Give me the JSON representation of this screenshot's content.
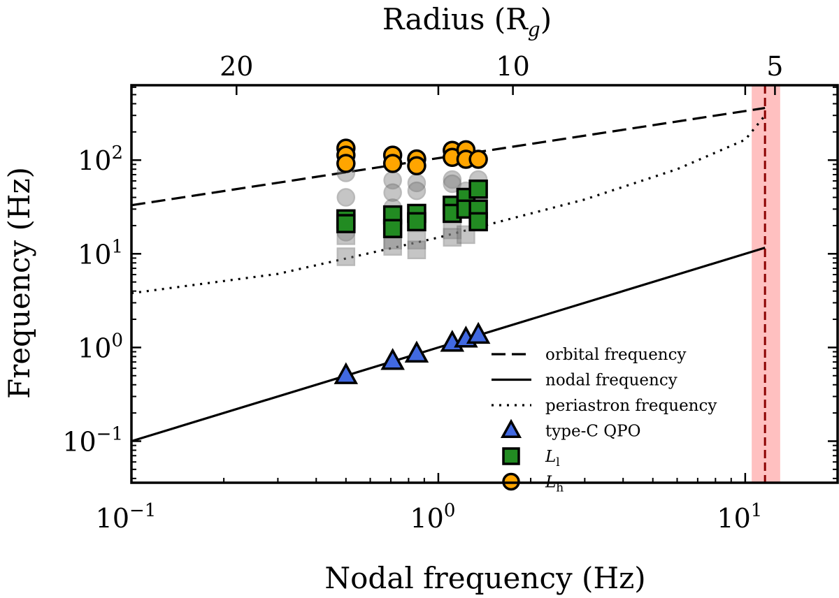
{
  "chart_data": {
    "type": "scatter",
    "xlabel": "Nodal frequency (Hz)",
    "ylabel": "Frequency (Hz)",
    "top_xlabel": "Radius (R",
    "top_xlabel_sub": "g",
    "top_xlabel_close": ")",
    "xscale": "log",
    "yscale": "log",
    "xlim": [
      0.1,
      20
    ],
    "ylim": [
      0.036,
      630
    ],
    "grid": false,
    "legend_position": "bottom-right",
    "x_ticks": [
      {
        "value": 0.1,
        "base": "10",
        "exp": "−1"
      },
      {
        "value": 1,
        "base": "10",
        "exp": "0"
      },
      {
        "value": 10,
        "base": "10",
        "exp": "1"
      }
    ],
    "y_ticks": [
      {
        "value": 0.1,
        "base": "10",
        "exp": "−1"
      },
      {
        "value": 1,
        "base": "10",
        "exp": "0"
      },
      {
        "value": 10,
        "base": "10",
        "exp": "1"
      },
      {
        "value": 100,
        "base": "10",
        "exp": "2"
      }
    ],
    "top_ticks": [
      {
        "label": "20",
        "nodal_value": 0.22
      },
      {
        "label": "10",
        "nodal_value": 1.75
      },
      {
        "label": "5",
        "nodal_value": 12.5
      }
    ],
    "isco_line": {
      "x": 11.6,
      "band": [
        10.5,
        13.0
      ],
      "line_color": "#8b0000",
      "band_color": "#ffc0c0"
    },
    "lines": [
      {
        "name": "orbital frequency",
        "style": "dashed",
        "x": [
          0.1,
          11.6
        ],
        "y": [
          33,
          360
        ]
      },
      {
        "name": "nodal frequency",
        "style": "solid",
        "x": [
          0.1,
          11.6
        ],
        "y": [
          0.1,
          11.6
        ]
      },
      {
        "name": "periastron frequency",
        "style": "dotted",
        "x": [
          0.1,
          0.3,
          1,
          3,
          6,
          10,
          11.6
        ],
        "y": [
          3.8,
          6.1,
          14.9,
          38,
          80,
          165,
          300
        ]
      }
    ],
    "series": [
      {
        "name": "type-C QPO",
        "marker": "triangle",
        "color": "#4169e1",
        "x": [
          0.5,
          0.71,
          0.85,
          1.11,
          1.23,
          1.35
        ],
        "y": [
          0.5,
          0.71,
          0.85,
          1.11,
          1.23,
          1.35
        ]
      },
      {
        "name": "L",
        "sub": "l",
        "marker": "square",
        "color": "#228b22",
        "x": [
          0.5,
          0.5,
          0.71,
          0.71,
          0.85,
          0.85,
          1.11,
          1.11,
          1.23,
          1.23,
          1.35,
          1.35,
          1.35
        ],
        "y": [
          23.6,
          21,
          26,
          18.6,
          27,
          22,
          33,
          27,
          40,
          30,
          49,
          30,
          22
        ]
      },
      {
        "name": "L",
        "sub": "h",
        "marker": "circle",
        "color": "#ffa500",
        "x": [
          0.5,
          0.5,
          0.5,
          0.71,
          0.71,
          0.85,
          0.85,
          1.11,
          1.11,
          1.23,
          1.23,
          1.35
        ],
        "y": [
          134,
          113,
          92,
          113,
          92,
          103,
          87,
          127,
          107,
          129,
          102,
          102
        ]
      },
      {
        "marker": "circle",
        "color": "#808080",
        "faded": true,
        "x": [
          0.5,
          0.5,
          0.5,
          0.71,
          0.71,
          0.71,
          0.85,
          0.85,
          1.11,
          1.11,
          1.23,
          1.35
        ],
        "y": [
          73,
          40,
          17,
          61,
          45,
          31,
          57,
          47,
          62,
          56,
          47,
          62
        ]
      },
      {
        "marker": "square",
        "color": "#808080",
        "faded": true,
        "x": [
          0.5,
          0.5,
          0.71,
          0.71,
          0.85,
          0.85,
          1.11,
          1.11,
          1.23,
          1.35
        ],
        "y": [
          15.6,
          9.3,
          14,
          12,
          14,
          11,
          18,
          15,
          16,
          44
        ]
      }
    ]
  }
}
